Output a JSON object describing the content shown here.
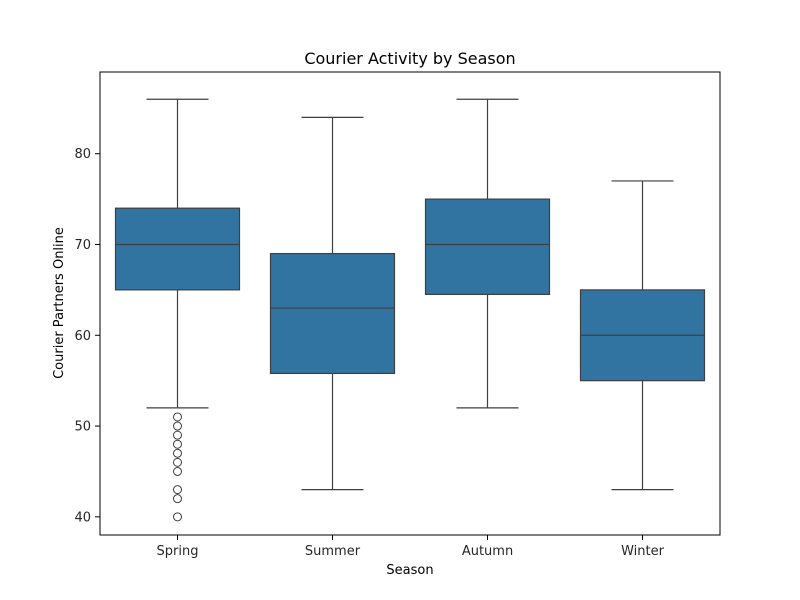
{
  "chart_data": {
    "type": "box",
    "title": "Courier Activity by Season",
    "xlabel": "Season",
    "ylabel": "Courier Partners Online",
    "categories": [
      "Spring",
      "Summer",
      "Autumn",
      "Winter"
    ],
    "ylim": [
      38,
      89
    ],
    "yticks": [
      40,
      50,
      60,
      70,
      80
    ],
    "grid": false,
    "box_color": "#3274a1",
    "line_color": "#3f3f3f",
    "boxes": [
      {
        "category": "Spring",
        "whisker_low": 52,
        "q1": 65,
        "median": 70,
        "q3": 74,
        "whisker_high": 86,
        "outliers": [
          51,
          50,
          49,
          48,
          47,
          46,
          45,
          43,
          42,
          40
        ]
      },
      {
        "category": "Summer",
        "whisker_low": 43,
        "q1": 55.8,
        "median": 63,
        "q3": 69,
        "whisker_high": 84,
        "outliers": []
      },
      {
        "category": "Autumn",
        "whisker_low": 52,
        "q1": 64.5,
        "median": 70,
        "q3": 75,
        "whisker_high": 86,
        "outliers": []
      },
      {
        "category": "Winter",
        "whisker_low": 43,
        "q1": 55,
        "median": 60,
        "q3": 65,
        "whisker_high": 77,
        "outliers": []
      }
    ]
  }
}
